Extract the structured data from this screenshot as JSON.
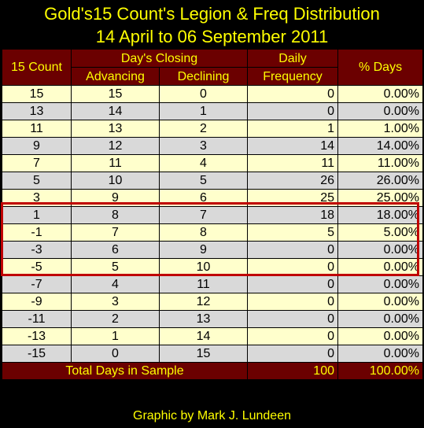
{
  "chart_data": {
    "type": "table",
    "title": "Gold's15 Count's Legion & Freq Distribution",
    "subtitle": "14 April to 06 September 2011",
    "headers": {
      "count": "15 Count",
      "closing_group": "Day's Closing",
      "advancing": "Advancing",
      "declining": "Declining",
      "daily": "Daily",
      "frequency": "Frequency",
      "pct_days": "% Days"
    },
    "rows": [
      {
        "count": "15",
        "advancing": "15",
        "declining": "0",
        "frequency": "0",
        "pct": "0.00%"
      },
      {
        "count": "13",
        "advancing": "14",
        "declining": "1",
        "frequency": "0",
        "pct": "0.00%"
      },
      {
        "count": "11",
        "advancing": "13",
        "declining": "2",
        "frequency": "1",
        "pct": "1.00%"
      },
      {
        "count": "9",
        "advancing": "12",
        "declining": "3",
        "frequency": "14",
        "pct": "14.00%"
      },
      {
        "count": "7",
        "advancing": "11",
        "declining": "4",
        "frequency": "11",
        "pct": "11.00%"
      },
      {
        "count": "5",
        "advancing": "10",
        "declining": "5",
        "frequency": "26",
        "pct": "26.00%"
      },
      {
        "count": "3",
        "advancing": "9",
        "declining": "6",
        "frequency": "25",
        "pct": "25.00%"
      },
      {
        "count": "1",
        "advancing": "8",
        "declining": "7",
        "frequency": "18",
        "pct": "18.00%"
      },
      {
        "count": "-1",
        "advancing": "7",
        "declining": "8",
        "frequency": "5",
        "pct": "5.00%"
      },
      {
        "count": "-3",
        "advancing": "6",
        "declining": "9",
        "frequency": "0",
        "pct": "0.00%"
      },
      {
        "count": "-5",
        "advancing": "5",
        "declining": "10",
        "frequency": "0",
        "pct": "0.00%"
      },
      {
        "count": "-7",
        "advancing": "4",
        "declining": "11",
        "frequency": "0",
        "pct": "0.00%"
      },
      {
        "count": "-9",
        "advancing": "3",
        "declining": "12",
        "frequency": "0",
        "pct": "0.00%"
      },
      {
        "count": "-11",
        "advancing": "2",
        "declining": "13",
        "frequency": "0",
        "pct": "0.00%"
      },
      {
        "count": "-13",
        "advancing": "1",
        "declining": "14",
        "frequency": "0",
        "pct": "0.00%"
      },
      {
        "count": "-15",
        "advancing": "0",
        "declining": "15",
        "frequency": "0",
        "pct": "0.00%"
      }
    ],
    "total": {
      "label": "Total Days in Sample",
      "frequency": "100",
      "pct": "100.00%"
    },
    "credit": "Graphic by Mark J. Lundeen",
    "colors": {
      "background": "#000000",
      "header_bg": "#6b0000",
      "header_text": "#ffff00",
      "row_odd": "#ffffcc",
      "row_even": "#d9d9d9",
      "highlight_border": "#c00000"
    }
  }
}
